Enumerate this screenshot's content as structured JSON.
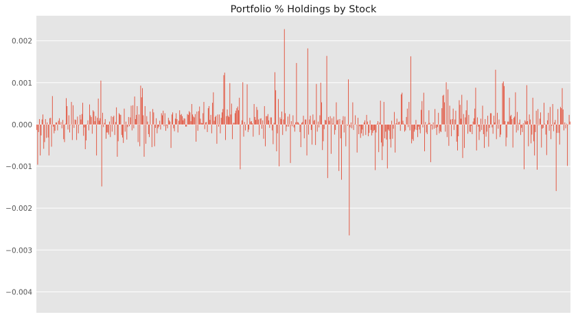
{
  "chart_data": {
    "type": "bar",
    "title": "Portfolio % Holdings by Stock",
    "xlabel": "",
    "ylabel": "",
    "ylim": [
      -0.0045,
      0.0026
    ],
    "yticks": [
      -0.004,
      -0.003,
      -0.002,
      -0.001,
      0.0,
      0.001,
      0.002
    ],
    "ytick_labels": [
      "−0.004",
      "−0.003",
      "−0.002",
      "−0.001",
      "0.000",
      "0.001",
      "0.002"
    ],
    "grid": true,
    "legend": "none",
    "bar_color": "#e24a33",
    "background_color": "#e5e5e5",
    "grid_color": "#ffffff",
    "values": [
      -0.00013,
      -0.00096,
      -0.00018,
      0.00013,
      -0.00074,
      -0.00026,
      0.00012,
      0.00024,
      -0.00058,
      -0.00042,
      0.00013,
      -0.00032,
      5e-05,
      -0.00031,
      -0.00074,
      0.00015,
      0.00016,
      -0.00053,
      0.00068,
      -5e-05,
      -0.00021,
      -0.00015,
      5e-05,
      5e-05,
      -0.00014,
      9e-05,
      0.00015,
      1e-05,
      6e-05,
      -9e-05,
      0.00011,
      -0.00035,
      -0.00042,
      2e-05,
      0.00063,
      0.00044,
      -0.00012,
      0.00022,
      -0.00019,
      -1e-05,
      0.00054,
      -0.00037,
      0.00046,
      -8e-05,
      0.00012,
      0.00011,
      -0.00037,
      0.00019,
      -0.00021,
      -1e-05,
      0.00023,
      0.00012,
      0.00025,
      0.00052,
      -0.00027,
      -7e-05,
      -0.00059,
      -0.00038,
      1e-05,
      0.0001,
      -0.00014,
      0.00048,
      0.00022,
      0.00018,
      -0.00022,
      0.00034,
      0.00031,
      8e-05,
      0.0002,
      -0.00074,
      0.00016,
      0.00062,
      9e-05,
      0.00015,
      0.00105,
      -0.00148,
      0.00028,
      -6e-05,
      4e-05,
      0.00013,
      -0.00034,
      -0.00019,
      -0.00019,
      -0.00024,
      7e-05,
      -0.0003,
      0.0002,
      -0.00017,
      0.00018,
      0.00021,
      -0.00025,
      6e-05,
      0.00041,
      -0.00077,
      -0.0004,
      0.00027,
      0.00024,
      0.00023,
      -0.00025,
      -0.00031,
      -0.00044,
      0.00038,
      -0.00017,
      7e-05,
      -0.00036,
      -6e-05,
      0.00018,
      -4e-05,
      0.00017,
      0.00045,
      -0.00014,
      0.00046,
      -9e-05,
      0.00067,
      0.00013,
      0.00023,
      0.00044,
      -0.00042,
      0.00024,
      -0.00052,
      0.00093,
      0.00065,
      0.00087,
      0.00022,
      -0.00077,
      0.00044,
      -0.00046,
      0.0002,
      7e-05,
      -0.00023,
      -0.0003,
      0.00031,
      -1e-05,
      -0.00054,
      0.00037,
      0.00029,
      -0.00052,
      -8e-05,
      0.00015,
      -0.00021,
      -9e-05,
      -5e-05,
      9e-05,
      -0.00012,
      0.00027,
      0.00022,
      0.00033,
      -4e-05,
      0.00027,
      -0.00015,
      -2e-05,
      -9e-05,
      0.00016,
      0.0001,
      7e-05,
      -0.00056,
      0.00024,
      0.00029,
      -9e-05,
      -0.00016,
      0.00014,
      0.00027,
      0.00013,
      -0.00019,
      9e-05,
      0.00034,
      0.00023,
      0.00025,
      0.0002,
      0.0001,
      0.00015,
      0.00014,
      -5e-05,
      -5e-05,
      0.00025,
      0.00023,
      0.00032,
      0.00029,
      8e-05,
      0.00049,
      0.00024,
      0.00019,
      0.00017,
      0.00025,
      -0.00041,
      0.00031,
      -0.00015,
      0.00032,
      0.00043,
      0.00014,
      4e-05,
      3e-05,
      0.00027,
      0.00054,
      -0.00011,
      5e-05,
      6e-05,
      -0.00018,
      0.00039,
      0.00044,
      0.00011,
      0.00023,
      -0.00021,
      0.00052,
      0.00077,
      9e-05,
      0.00018,
      0.00021,
      -0.00046,
      0.00024,
      -5e-05,
      0.00024,
      -0.00021,
      0.00016,
      0.00029,
      0.00037,
      0.00118,
      0.00124,
      -0.00037,
      0.0002,
      0.00036,
      0.00021,
      0.00018,
      0.00099,
      0.00024,
      0.0005,
      -0.00035,
      4e-05,
      4e-05,
      0.00027,
      0.00033,
      0.00039,
      0.00043,
      0.00034,
      0.00064,
      -0.00107,
      1e-05,
      0.0001,
      0.00101,
      -0.00029,
      6e-05,
      -0.00014,
      1e-05,
      0.00096,
      -0.00018,
      -0.00012,
      0.00016,
      7e-05,
      8e-05,
      3e-05,
      -0.00029,
      0.00049,
      0.00018,
      0.00011,
      0.00042,
      0.00035,
      0.00012,
      -0.00025,
      0.00014,
      0.00015,
      -0.0001,
      0.0001,
      -0.00034,
      0.00044,
      -0.00052,
      0.0002,
      0.0002,
      0.00025,
      0.0001,
      -8e-05,
      0.00017,
      0.00017,
      -0.00014,
      -0.00047,
      4e-05,
      0.00125,
      0.00082,
      -0.00064,
      -0.00021,
      0.00061,
      -0.001,
      0.00017,
      0.00013,
      0.00031,
      -0.00025,
      0.00012,
      0.00228,
      0.00027,
      -0.00016,
      -5e-05,
      0.00019,
      -5e-05,
      0.00025,
      -0.00092,
      8e-05,
      -4e-05,
      0.00022,
      -7e-05,
      -0.00017,
      5e-05,
      0.00147,
      6e-05,
      5e-05,
      2e-05,
      -0.00018,
      -0.00054,
      4e-05,
      6e-05,
      0.00021,
      -0.00033,
      0.00012,
      0.00012,
      -0.00074,
      0.00182,
      -0.00024,
      0.00012,
      0.00021,
      -0.00013,
      -0.00048,
      0.00024,
      9e-05,
      0.00011,
      -0.00049,
      0.00097,
      -0.00017,
      7e-05,
      -7e-05,
      0.00022,
      0.001,
      0.00053,
      -0.00061,
      -0.0004,
      -0.00011,
      0.00011,
      0.0001,
      0.00164,
      -0.00128,
      0.00018,
      9e-05,
      0.0002,
      -0.0007,
      0.00015,
      2e-05,
      0.00019,
      -0.00024,
      -0.00013,
      0.00053,
      0.0001,
      0.00012,
      -0.00111,
      0.00013,
      -0.00033,
      -0.00132,
      0.0001,
      0.0002,
      -0.00019,
      0.00019,
      -0.00052,
      1e-05,
      -3e-05,
      0.00108,
      -0.00265,
      -7e-05,
      5e-05,
      -9e-05,
      0.00053,
      -0.00013,
      1e-05,
      0.00022,
      -1e-05,
      -0.00067,
      0.00016,
      -0.00023,
      -4e-05,
      -0.00032,
      -0.00021,
      -0.00012,
      -0.00027,
      5e-05,
      0.0001,
      -0.00025,
      0.00023,
      7e-05,
      -0.00028,
      -0.0002,
      0.0001,
      -0.00013,
      -0.00026,
      -0.0002,
      -0.00015,
      -0.00013,
      -0.00109,
      -0.00019,
      2e-05,
      8e-05,
      -0.00066,
      5e-05,
      0.00057,
      -0.00043,
      -0.00085,
      -0.00052,
      0.00054,
      -0.00033,
      -0.00017,
      -0.00036,
      -0.00105,
      -0.00012,
      -0.00015,
      -0.00035,
      -0.00055,
      9e-05,
      -0.00034,
      -0.0001,
      0.0003,
      -0.00067,
      3e-05,
      0.00014,
      1e-05,
      6e-05,
      7e-05,
      -0.00015,
      0.00072,
      0.00076,
      9e-05,
      2e-05,
      -0.00017,
      -0.00014,
      0.00018,
      0.00038,
      -6e-05,
      0.00054,
      -0.00014,
      0.00163,
      -0.00045,
      -0.00035,
      -0.00039,
      -0.00017,
      -0.00012,
      0.00011,
      -0.00013,
      -0.0003,
      -5e-05,
      -0.00012,
      -0.00021,
      0.00035,
      0.00056,
      -7e-05,
      0.00076,
      -0.00064,
      6e-05,
      -0.00019,
      -0.00023,
      2e-05,
      0.00034,
      4e-05,
      -0.0009,
      -2e-05,
      -0.00012,
      5e-05,
      -0.0001,
      0.00037,
      -8e-05,
      -0.00025,
      -6e-05,
      0.00028,
      -0.00021,
      -0.00016,
      -0.00018,
      0.00039,
      0.00069,
      0.00071,
      0.00053,
      -0.00017,
      0.00101,
      -0.0003,
      0.00084,
      -0.00051,
      0.00045,
      0.00012,
      -0.00028,
      0.00013,
      0.00038,
      -0.00013,
      0.00012,
      0.00033,
      -0.00041,
      -0.00062,
      -0.00028,
      0.00058,
      0.00047,
      0.00014,
      0.00071,
      -0.0008,
      0.00025,
      -0.00056,
      0.00017,
      0.00034,
      0.00058,
      -0.00022,
      0.00023,
      -0.00017,
      -0.00018,
      -3e-05,
      -0.00023,
      7e-05,
      0.00015,
      0.00038,
      0.00088,
      -0.00062,
      0.00017,
      -5e-05,
      -0.00037,
      -0.00017,
      0.00014,
      -0.00013,
      0.00045,
      -0.00023,
      -0.00056,
      0.00013,
      -0.00029,
      -0.00017,
      0.00021,
      -0.00053,
      -8e-05,
      0.00027,
      0.00027,
      -7e-05,
      -0.00022,
      0.00021,
      5e-05,
      0.00131,
      -0.00035,
      0.00028,
      -0.0001,
      0.00012,
      -0.0003,
      -0.00024,
      -1e-05,
      0.00099,
      0.00103,
      0.00092,
      8e-05,
      -0.00052,
      -0.00031,
      7e-05,
      7e-05,
      0.00064,
      0.0002,
      0.00023,
      0.00013,
      -0.00055,
      0.00016,
      0.00019,
      0.00077,
      -0.00019,
      0.0003,
      -0.00014,
      4e-05,
      0.00012,
      -0.00025,
      -8e-05,
      -0.00018,
      3e-05,
      -0.00107,
      0.0001,
      7e-05,
      0.00094,
      8e-05,
      -0.00052,
      0.00024,
      0.00012,
      -0.00045,
      -0.00024,
      0.00064,
      -0.0004,
      -0.00074,
      -0.00018,
      0.00033,
      -0.00108,
      0.00037,
      -2e-05,
      0.00014,
      0.00029,
      -0.00055,
      -0.0001,
      -8e-05,
      0.00052,
      2e-05,
      -0.00024,
      -0.00073,
      0.0001,
      0.00028,
      -0.00015,
      0.00042,
      -0.00035,
      -3e-05,
      0.00049,
      -0.00016,
      5e-05,
      0.00011,
      -0.00159,
      -0.0002,
      0.00037,
      -0.0002,
      -0.00048,
      0.00042,
      0.00039,
      0.00087,
      0.00036,
      -0.00014,
      5e-05,
      -9e-05,
      2e-05,
      -0.00099,
      -1e-05,
      0.00023,
      7e-05
    ]
  }
}
